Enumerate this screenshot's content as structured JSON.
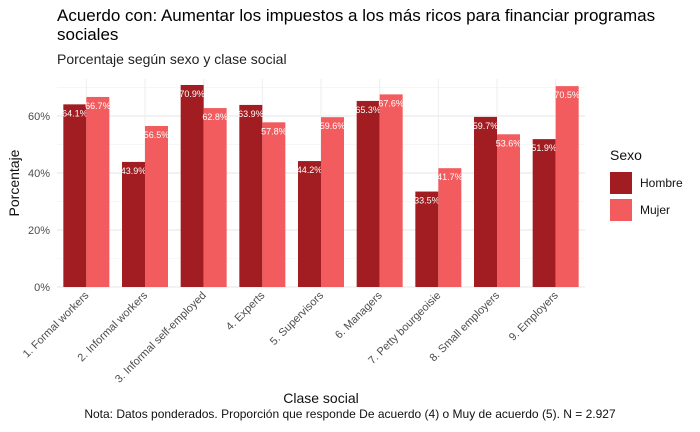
{
  "chart_data": {
    "type": "bar",
    "title": "Acuerdo con: Aumentar los impuestos a los más ricos para financiar programas sociales",
    "subtitle": "Porcentaje según sexo y clase social",
    "xlabel": "Clase social",
    "ylabel": "Porcentaje",
    "caption": "Nota: Datos ponderados. Proporción que responde De acuerdo (4) o Muy de acuerdo (5). N = 2.927",
    "categories": [
      "1. Formal workers",
      "2. Informal workers",
      "3. Informal self-employed",
      "4. Experts",
      "5. Supervisors",
      "6. Managers",
      "7. Petty bourgeoisie",
      "8. Small employers",
      "9. Employers"
    ],
    "series": [
      {
        "name": "Hombre",
        "color": "#a11d21",
        "values": [
          64.1,
          43.9,
          70.9,
          63.9,
          44.2,
          65.3,
          33.5,
          59.7,
          51.9
        ],
        "labels": [
          "64.1%",
          "43.9%",
          "70.9%",
          "63.9%",
          "44.2%",
          "65.3%",
          "33.5%",
          "59.7%",
          "51.9%"
        ]
      },
      {
        "name": "Mujer",
        "color": "#f25c5f",
        "values": [
          66.7,
          56.5,
          62.8,
          57.8,
          59.6,
          67.6,
          41.7,
          53.6,
          70.5
        ],
        "labels": [
          "66.7%",
          "56.5%",
          "62.8%",
          "57.8%",
          "59.6%",
          "67.6%",
          "41.7%",
          "53.6%",
          "70.5%"
        ]
      }
    ],
    "ylim": [
      0,
      73
    ],
    "yticks": [
      0,
      20,
      40,
      60
    ],
    "ytick_labels": [
      "0%",
      "20%",
      "40%",
      "60%"
    ],
    "grid": true,
    "legend": {
      "title": "Sexo",
      "position": "right"
    }
  }
}
